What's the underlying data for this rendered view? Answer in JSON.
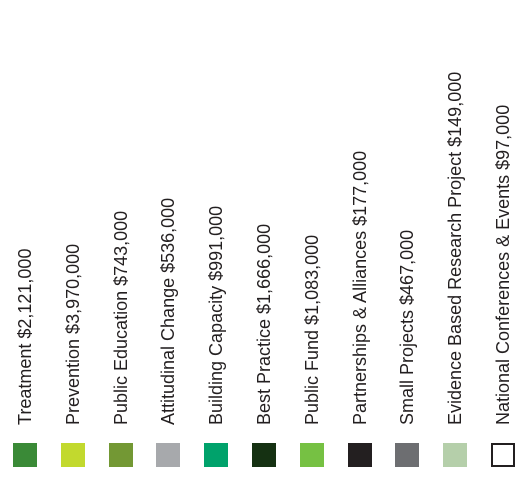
{
  "chart_data": {
    "type": "pie",
    "title": "",
    "legend_placement": "bottom",
    "categories": [
      "Treatment",
      "Prevention",
      "Public Education",
      "Attitudinal Change",
      "Building Capacity",
      "Best Practice",
      "Public Fund",
      "Partnerships & Alliances",
      "Small Projects",
      "Evidence Based Research Project",
      "National Conferences & Events"
    ],
    "values": [
      2121000,
      3970000,
      743000,
      536000,
      991000,
      1666000,
      1083000,
      177000,
      467000,
      149000,
      97000
    ],
    "labels": [
      "Treatment $2,121,000",
      "Prevention $3,970,000",
      "Public Education $743,000",
      "Attitudinal Change $536,000",
      "Building Capacity $991,000",
      "Best Practice $1,666,000",
      "Public Fund $1,083,000",
      "Partnerships & Alliances $177,000",
      "Small Projects $467,000",
      "Evidence Based Research Project $149,000",
      "National Conferences & Events $97,000"
    ],
    "colors": [
      "#3a8a37",
      "#c2d92e",
      "#739834",
      "#a7a9ac",
      "#00a26b",
      "#153112",
      "#76c143",
      "#231f20",
      "#6d6e71",
      "#b5cfaa",
      "#ffffff"
    ],
    "outline_colors": [
      "",
      "",
      "",
      "",
      "",
      "",
      "",
      "",
      "",
      "",
      "#231f20"
    ]
  }
}
